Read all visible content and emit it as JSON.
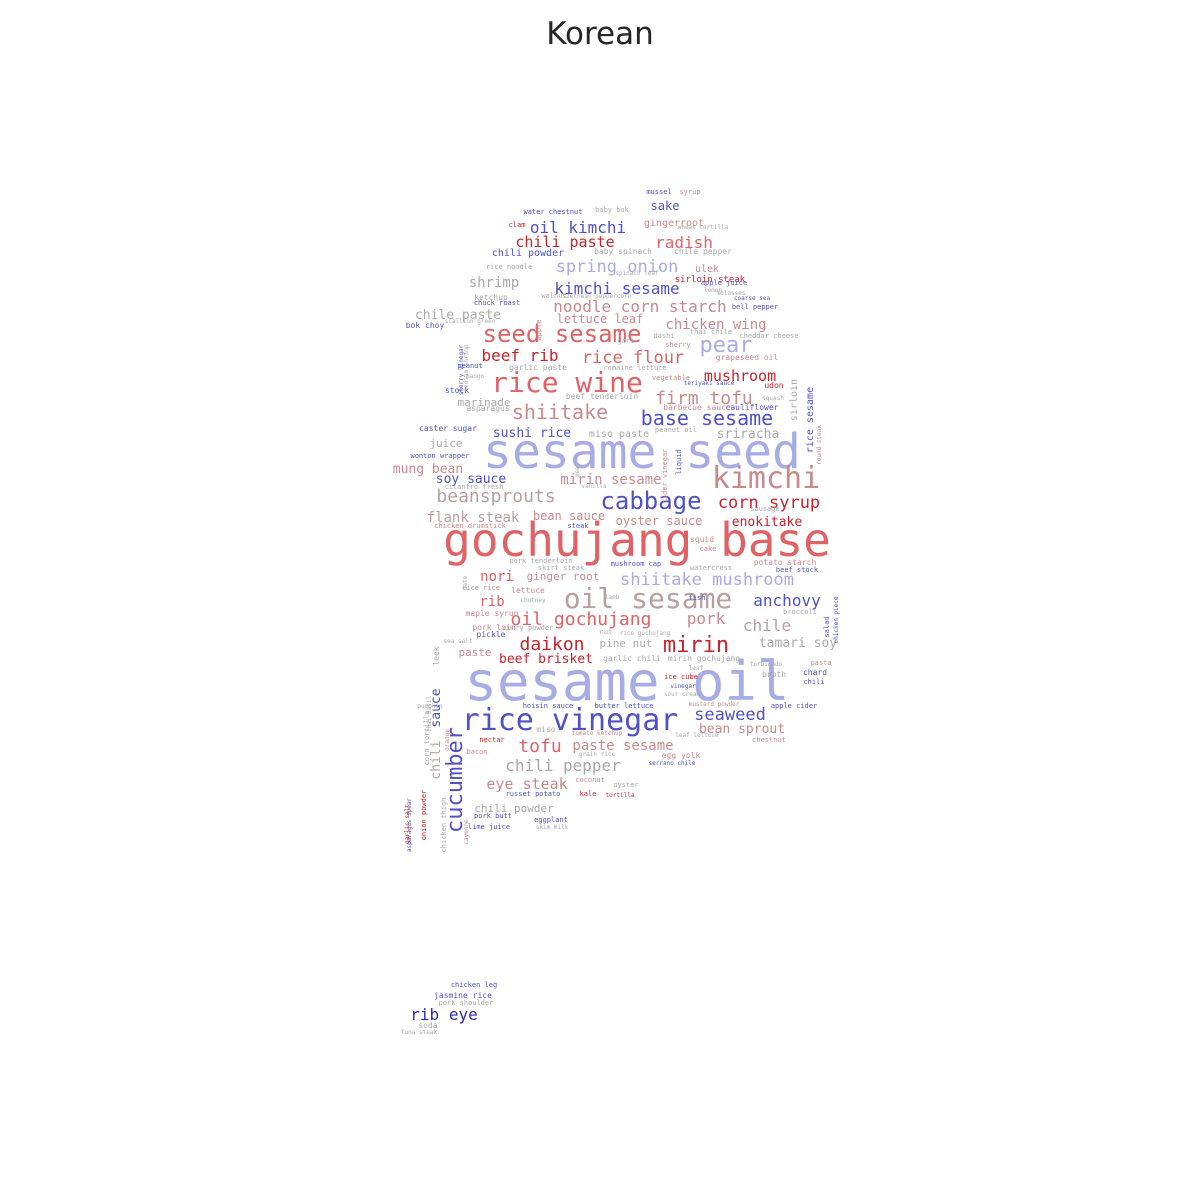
{
  "title": "Korean",
  "palette": {
    "deep_red": "#c8232c",
    "red": "#e06265",
    "salmon": "#c98a8c",
    "taupe": "#b8a0a0",
    "gray": "#a9a9a9",
    "lavender": "#a8ace6",
    "blue": "#4f52c7",
    "deep_blue": "#2a2db0"
  },
  "words": [
    {
      "text": "sesame oil",
      "c": "lavender",
      "r": 0
    },
    {
      "text": "gochujang base",
      "c": "red",
      "r": 0
    },
    {
      "text": "sesame seed",
      "c": "lavender",
      "r": 0
    },
    {
      "text": "kimchi",
      "c": "salmon",
      "r": 0
    },
    {
      "text": "rice vinegar",
      "c": "blue",
      "r": 0
    },
    {
      "text": "rice wine",
      "c": "red",
      "r": 0
    },
    {
      "text": "oil sesame",
      "c": "taupe",
      "r": 0
    },
    {
      "text": "seed sesame",
      "c": "red",
      "r": 0
    },
    {
      "text": "cabbage",
      "c": "blue",
      "r": 0
    },
    {
      "text": "cucumber",
      "c": "blue",
      "r": 90
    },
    {
      "text": "mirin",
      "c": "deep_red",
      "r": 0
    },
    {
      "text": "daikon",
      "c": "deep_red",
      "r": 0
    },
    {
      "text": "shiitake",
      "c": "salmon",
      "r": 0
    },
    {
      "text": "base sesame",
      "c": "blue",
      "r": 0
    },
    {
      "text": "corn syrup",
      "c": "deep_red",
      "r": 0
    },
    {
      "text": "firm tofu",
      "c": "salmon",
      "r": 0
    },
    {
      "text": "pear",
      "c": "lavender",
      "r": 0
    },
    {
      "text": "shiitake mushroom",
      "c": "lavender",
      "r": 0
    },
    {
      "text": "oil gochujang",
      "c": "red",
      "r": 0
    },
    {
      "text": "beansprouts",
      "c": "taupe",
      "r": 0
    },
    {
      "text": "tofu",
      "c": "red",
      "r": 0
    },
    {
      "text": "chili pepper",
      "c": "gray",
      "r": 0
    },
    {
      "text": "seaweed",
      "c": "blue",
      "r": 0
    },
    {
      "text": "anchovy",
      "c": "blue",
      "r": 0
    },
    {
      "text": "pork",
      "c": "salmon",
      "r": 0
    },
    {
      "text": "chile",
      "c": "taupe",
      "r": 0
    },
    {
      "text": "rice flour",
      "c": "red",
      "r": 0
    },
    {
      "text": "beef rib",
      "c": "deep_red",
      "r": 0
    },
    {
      "text": "noodle corn starch",
      "c": "salmon",
      "r": 0
    },
    {
      "text": "kimchi sesame",
      "c": "blue",
      "r": 0
    },
    {
      "text": "spring onion",
      "c": "lavender",
      "r": 0
    },
    {
      "text": "chili paste",
      "c": "deep_red",
      "r": 0
    },
    {
      "text": "radish",
      "c": "red",
      "r": 0
    },
    {
      "text": "oil kimchi",
      "c": "blue",
      "r": 0
    },
    {
      "text": "mushroom",
      "c": "deep_red",
      "r": 0
    },
    {
      "text": "chicken wing",
      "c": "salmon",
      "r": 0
    },
    {
      "text": "eye steak",
      "c": "salmon",
      "r": 0
    },
    {
      "text": "paste sesame",
      "c": "salmon",
      "r": 0
    },
    {
      "text": "bean sprout",
      "c": "salmon",
      "r": 0
    },
    {
      "text": "flank steak",
      "c": "taupe",
      "r": 0
    },
    {
      "text": "mirin sesame",
      "c": "salmon",
      "r": 0
    },
    {
      "text": "nori",
      "c": "red",
      "r": 0
    },
    {
      "text": "rib",
      "c": "red",
      "r": 0
    },
    {
      "text": "chili",
      "c": "taupe",
      "r": 90
    },
    {
      "text": "sauce",
      "c": "blue",
      "r": 90
    },
    {
      "text": "sushi rice",
      "c": "blue",
      "r": 0
    },
    {
      "text": "soy sauce",
      "c": "blue",
      "r": 0
    },
    {
      "text": "mung bean",
      "c": "salmon",
      "r": 0
    },
    {
      "text": "beef brisket",
      "c": "deep_red",
      "r": 0
    },
    {
      "text": "tamari soy",
      "c": "gray",
      "r": 0
    },
    {
      "text": "sriracha",
      "c": "gray",
      "r": 0
    },
    {
      "text": "enokitake",
      "c": "deep_red",
      "r": 0
    },
    {
      "text": "oyster sauce",
      "c": "salmon",
      "r": 0
    },
    {
      "text": "shrimp",
      "c": "gray",
      "r": 0
    },
    {
      "text": "sake",
      "c": "blue",
      "r": 0
    },
    {
      "text": "chile paste",
      "c": "gray",
      "r": 0
    },
    {
      "text": "lettuce leaf",
      "c": "salmon",
      "r": 0
    },
    {
      "text": "bean sauce",
      "c": "salmon",
      "r": 0
    },
    {
      "text": "ginger root",
      "c": "salmon",
      "r": 0
    },
    {
      "text": "pine nut",
      "c": "gray",
      "r": 0
    },
    {
      "text": "chili powder",
      "c": "gray",
      "r": 0
    },
    {
      "text": "paste",
      "c": "salmon",
      "r": 0
    },
    {
      "text": "marinade",
      "c": "gray",
      "r": 0
    },
    {
      "text": "juice",
      "c": "gray",
      "r": 0
    },
    {
      "text": "miso paste",
      "c": "gray",
      "r": 0
    },
    {
      "text": "sirloin",
      "c": "gray",
      "r": 90
    },
    {
      "text": "rice sesame",
      "c": "blue",
      "r": 90
    },
    {
      "text": "rib eye",
      "c": "deep_blue",
      "r": 0
    },
    {
      "text": "chili powder",
      "c": "blue",
      "r": 0
    },
    {
      "text": "gingerroot",
      "c": "salmon",
      "r": 0
    },
    {
      "text": "ulek",
      "c": "salmon",
      "r": 0
    },
    {
      "text": "sirloin steak",
      "c": "deep_red",
      "r": 0
    },
    {
      "text": "grapeseed oil",
      "c": "salmon",
      "r": 0
    },
    {
      "text": "udon",
      "c": "deep_red",
      "r": 0
    },
    {
      "text": "ketchup",
      "c": "gray",
      "r": 0
    },
    {
      "text": "bok choy",
      "c": "blue",
      "r": 0
    },
    {
      "text": "garlic paste",
      "c": "gray",
      "r": 0
    },
    {
      "text": "beef tenderloin",
      "c": "gray",
      "r": 0
    },
    {
      "text": "barbecue sauce",
      "c": "salmon",
      "r": 0
    },
    {
      "text": "cauliflower",
      "c": "blue",
      "r": 0
    },
    {
      "text": "stock",
      "c": "blue",
      "r": 0
    },
    {
      "text": "asparagus",
      "c": "gray",
      "r": 0
    },
    {
      "text": "caster sugar",
      "c": "blue",
      "r": 0
    },
    {
      "text": "wonton wrapper",
      "c": "blue",
      "r": 0
    },
    {
      "text": "cilantro fresh",
      "c": "gray",
      "r": 0
    },
    {
      "text": "chicken drumstick",
      "c": "salmon",
      "r": 0
    },
    {
      "text": "steak",
      "c": "blue",
      "r": 0
    },
    {
      "text": "sausage",
      "c": "gray",
      "r": 0
    },
    {
      "text": "squid",
      "c": "salmon",
      "r": 0
    },
    {
      "text": "cake",
      "c": "salmon",
      "r": 0
    },
    {
      "text": "potato starch",
      "c": "salmon",
      "r": 0
    },
    {
      "text": "beef stock",
      "c": "blue",
      "r": 0
    },
    {
      "text": "watercress",
      "c": "gray",
      "r": 0
    },
    {
      "text": "mushroom cap",
      "c": "blue",
      "r": 0
    },
    {
      "text": "pork tenderloin",
      "c": "gray",
      "r": 0
    },
    {
      "text": "skirt steak",
      "c": "gray",
      "r": 0
    },
    {
      "text": "rice rice",
      "c": "salmon",
      "r": 0
    },
    {
      "text": "lettuce",
      "c": "salmon",
      "r": 0
    },
    {
      "text": "chutney",
      "c": "gray",
      "r": 0
    },
    {
      "text": "lamb",
      "c": "gray",
      "r": 0
    },
    {
      "text": "broccoli",
      "c": "gray",
      "r": 0
    },
    {
      "text": "maple syrup",
      "c": "salmon",
      "r": 0
    },
    {
      "text": "pork loin",
      "c": "salmon",
      "r": 0
    },
    {
      "text": "curry powder",
      "c": "gray",
      "r": 0
    },
    {
      "text": "pickle",
      "c": "blue",
      "r": 0
    },
    {
      "text": "nut",
      "c": "gray",
      "r": 0
    },
    {
      "text": "rice gochujang",
      "c": "gray",
      "r": 0
    },
    {
      "text": "sea salt",
      "c": "gray",
      "r": 0
    },
    {
      "text": "leek",
      "c": "gray",
      "r": 90
    },
    {
      "text": "garlic chili",
      "c": "gray",
      "r": 0
    },
    {
      "text": "mirin gochujang",
      "c": "gray",
      "r": 0
    },
    {
      "text": "turbinado",
      "c": "gray",
      "r": 0
    },
    {
      "text": "pasta",
      "c": "salmon",
      "r": 0
    },
    {
      "text": "leaf",
      "c": "gray",
      "r": 0
    },
    {
      "text": "chard",
      "c": "blue",
      "r": 0
    },
    {
      "text": "broth",
      "c": "gray",
      "r": 0
    },
    {
      "text": "chili",
      "c": "blue",
      "r": 0
    },
    {
      "text": "ice cube",
      "c": "deep_red",
      "r": 0
    },
    {
      "text": "vinegar",
      "c": "blue",
      "r": 0
    },
    {
      "text": "sour cream",
      "c": "gray",
      "r": 0
    },
    {
      "text": "mustard powder",
      "c": "salmon",
      "r": 0
    },
    {
      "text": "apple cider",
      "c": "blue",
      "r": 0
    },
    {
      "text": "hoisin sauce",
      "c": "blue",
      "r": 0
    },
    {
      "text": "butter lettuce",
      "c": "blue",
      "r": 0
    },
    {
      "text": "pumpkin",
      "c": "gray",
      "r": 0
    },
    {
      "text": "corn tortilla",
      "c": "gray",
      "r": 90
    },
    {
      "text": "nectar",
      "c": "deep_red",
      "r": 0
    },
    {
      "text": "miso",
      "c": "gray",
      "r": 0
    },
    {
      "text": "tomato ketchup",
      "c": "salmon",
      "r": 0
    },
    {
      "text": "leaf lettuce",
      "c": "gray",
      "r": 0
    },
    {
      "text": "chestnut",
      "c": "salmon",
      "r": 0
    },
    {
      "text": "bacon",
      "c": "salmon",
      "r": 0
    },
    {
      "text": "grain rice",
      "c": "gray",
      "r": 0
    },
    {
      "text": "egg yolk",
      "c": "salmon",
      "r": 0
    },
    {
      "text": "serrano chile",
      "c": "blue",
      "r": 0
    },
    {
      "text": "russet potato",
      "c": "blue",
      "r": 0
    },
    {
      "text": "coconut",
      "c": "salmon",
      "r": 0
    },
    {
      "text": "oyster",
      "c": "gray",
      "r": 0
    },
    {
      "text": "kale",
      "c": "deep_red",
      "r": 0
    },
    {
      "text": "tortilla",
      "c": "deep_red",
      "r": 0
    },
    {
      "text": "pork butt",
      "c": "blue",
      "r": 0
    },
    {
      "text": "eggplant",
      "c": "blue",
      "r": 0
    },
    {
      "text": "lime juice",
      "c": "blue",
      "r": 0
    },
    {
      "text": "skim milk",
      "c": "gray",
      "r": 0
    },
    {
      "text": "onion powder",
      "c": "deep_red",
      "r": 90
    },
    {
      "text": "chicken thigh",
      "c": "gray",
      "r": 90
    },
    {
      "text": "asparagus spear",
      "c": "blue",
      "r": 90
    },
    {
      "text": "garlic salt",
      "c": "deep_red",
      "r": 90
    },
    {
      "text": "cayenne",
      "c": "salmon",
      "r": 90
    },
    {
      "text": "orange",
      "c": "salmon",
      "r": 90
    },
    {
      "text": "mussel",
      "c": "blue",
      "r": 0
    },
    {
      "text": "syrup",
      "c": "salmon",
      "r": 0
    },
    {
      "text": "water chestnut",
      "c": "blue",
      "r": 0
    },
    {
      "text": "baby bok",
      "c": "gray",
      "r": 0
    },
    {
      "text": "clam",
      "c": "deep_red",
      "r": 0
    },
    {
      "text": "wheat tortilla",
      "c": "gray",
      "r": 0
    },
    {
      "text": "baby spinach",
      "c": "gray",
      "r": 0
    },
    {
      "text": "chile pepper",
      "c": "gray",
      "r": 0
    },
    {
      "text": "rice noodle",
      "c": "gray",
      "r": 0
    },
    {
      "text": "spinach leaf",
      "c": "gray",
      "r": 0
    },
    {
      "text": "apple juice",
      "c": "blue",
      "r": 0
    },
    {
      "text": "lemon",
      "c": "gray",
      "r": 0
    },
    {
      "text": "chuck roast",
      "c": "blue",
      "r": 0
    },
    {
      "text": "walnut",
      "c": "gray",
      "r": 0
    },
    {
      "text": "szechwan peppercorn",
      "c": "gray",
      "r": 0
    },
    {
      "text": "coarse sea",
      "c": "blue",
      "r": 0
    },
    {
      "text": "bell pepper",
      "c": "blue",
      "r": 0
    },
    {
      "text": "molasses",
      "c": "gray",
      "r": 0
    },
    {
      "text": "scallion green",
      "c": "gray",
      "r": 0
    },
    {
      "text": "thai chile",
      "c": "gray",
      "r": 0
    },
    {
      "text": "dashi",
      "c": "gray",
      "r": 0
    },
    {
      "text": "gari",
      "c": "gray",
      "r": 0
    },
    {
      "text": "sherry",
      "c": "salmon",
      "r": 0
    },
    {
      "text": "cheddar cheese",
      "c": "gray",
      "r": 0
    },
    {
      "text": "peanut",
      "c": "blue",
      "r": 0
    },
    {
      "text": "romaine lettuce",
      "c": "gray",
      "r": 0
    },
    {
      "text": "mango",
      "c": "gray",
      "r": 0
    },
    {
      "text": "vegetable",
      "c": "salmon",
      "r": 0
    },
    {
      "text": "teriyaki sauce",
      "c": "blue",
      "r": 0
    },
    {
      "text": "squash",
      "c": "gray",
      "r": 0
    },
    {
      "text": "peanut oil",
      "c": "gray",
      "r": 0
    },
    {
      "text": "liquid",
      "c": "blue",
      "r": 90
    },
    {
      "text": "cider vinegar",
      "c": "salmon",
      "r": 90
    },
    {
      "text": "meat",
      "c": "gray",
      "r": 90
    },
    {
      "text": "vanilla",
      "c": "gray",
      "r": 0
    },
    {
      "text": "fish",
      "c": "blue",
      "r": 0
    },
    {
      "text": "round steak",
      "c": "salmon",
      "r": 90
    },
    {
      "text": "salad",
      "c": "blue",
      "r": 90
    },
    {
      "text": "chicken piece",
      "c": "blue",
      "r": 90
    },
    {
      "text": "apple",
      "c": "salmon",
      "r": 90
    },
    {
      "text": "sherry vinegar",
      "c": "blue",
      "r": 90
    },
    {
      "text": "medium shrimp",
      "c": "gray",
      "r": 90
    },
    {
      "text": "date",
      "c": "gray",
      "r": 90
    },
    {
      "text": "thai basil",
      "c": "gray",
      "r": 90
    },
    {
      "text": "chicken leg",
      "c": "blue",
      "r": 0
    },
    {
      "text": "jasmine rice",
      "c": "blue",
      "r": 0
    },
    {
      "text": "pork shoulder",
      "c": "gray",
      "r": 0
    },
    {
      "text": "soda",
      "c": "gray",
      "r": 0
    },
    {
      "text": "tuna steak",
      "c": "gray",
      "r": 0
    }
  ]
}
